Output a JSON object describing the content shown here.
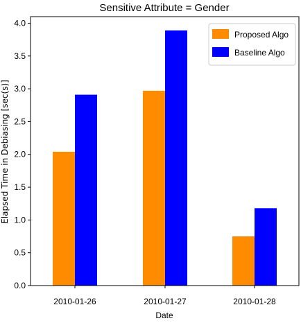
{
  "chart_data": {
    "type": "bar",
    "title": "Sensitive Attribute = Gender",
    "xlabel": "Date",
    "ylabel": "Elapsed Time in Debiasing [sec(s)]",
    "categories": [
      "2010-01-26",
      "2010-01-27",
      "2010-01-28"
    ],
    "series": [
      {
        "name": "Proposed Algo",
        "color": "#ff8c00",
        "values": [
          2.04,
          2.97,
          0.75
        ]
      },
      {
        "name": "Baseline Algo",
        "color": "#0000ff",
        "values": [
          2.91,
          3.89,
          1.18
        ]
      }
    ],
    "ylim": [
      0,
      4.1
    ],
    "yticks": [
      0.0,
      0.5,
      1.0,
      1.5,
      2.0,
      2.5,
      3.0,
      3.5,
      4.0
    ],
    "ytick_labels": [
      "0.0",
      "0.5",
      "1.0",
      "1.5",
      "2.0",
      "2.5",
      "3.0",
      "3.5",
      "4.0"
    ],
    "grid": false,
    "legend_position": "top-right"
  }
}
